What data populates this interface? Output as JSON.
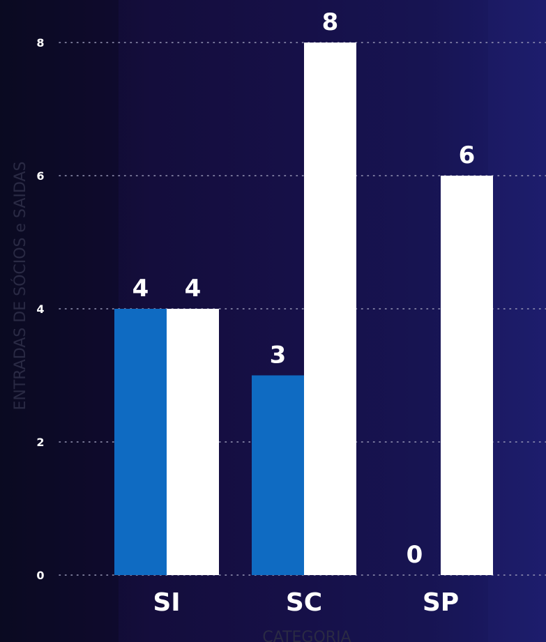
{
  "chart_data": {
    "type": "bar",
    "categories": [
      "SI",
      "SC",
      "SP"
    ],
    "series": [
      {
        "values": [
          4,
          3,
          0
        ],
        "color": "#0f6bc2"
      },
      {
        "values": [
          4,
          8,
          6
        ],
        "color": "#ffffff"
      }
    ],
    "xlabel": "CATEGORIA",
    "ylabel": "ENTRADAS DE SÓCIOS e SAIDAS",
    "ylim": [
      0,
      8
    ],
    "yticks": [
      0,
      2,
      4,
      6,
      8
    ],
    "grid": true,
    "grid_style": "dotted"
  }
}
